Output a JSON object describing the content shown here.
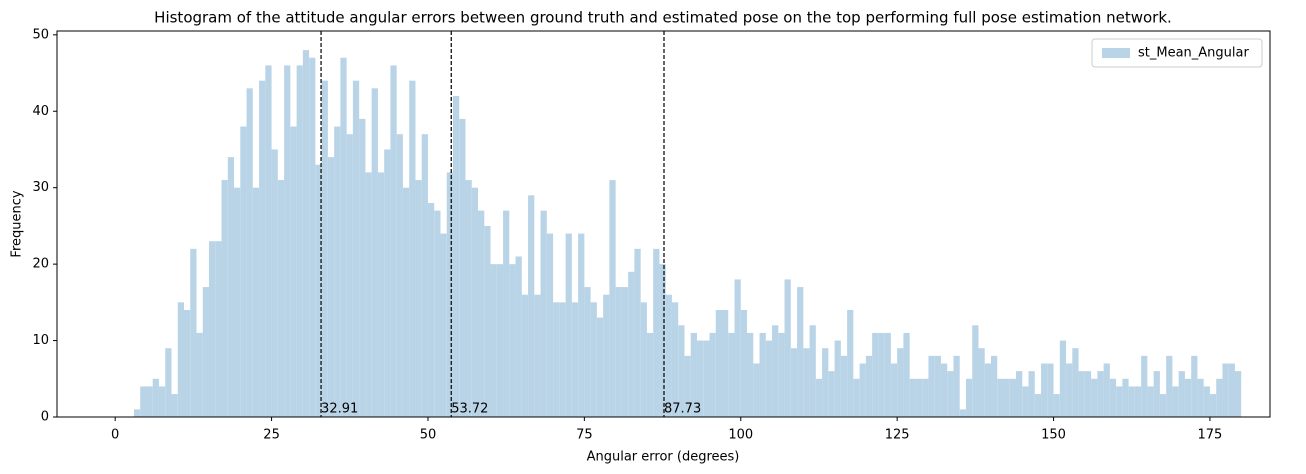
{
  "chart_data": {
    "type": "histogram",
    "title": "Histogram of the attitude angular errors between ground truth and estimated pose on the top performing full pose estimation network.",
    "xlabel": "Angular error (degrees)",
    "ylabel": "Frequency",
    "series": [
      {
        "name": "st_Mean_Angular",
        "color": "#bad4e7",
        "bins": [
          3,
          4,
          5,
          6,
          7,
          8,
          9,
          10,
          11,
          12,
          13,
          14,
          15,
          16,
          17,
          18,
          19,
          20,
          21,
          22,
          23,
          24,
          25,
          26,
          27,
          28,
          29,
          30,
          31,
          32,
          33,
          34,
          35,
          36,
          37,
          38,
          39,
          40,
          41,
          42,
          43,
          44,
          45,
          46,
          47,
          48,
          49,
          50,
          51,
          52,
          53,
          54,
          55,
          56,
          57,
          58,
          59,
          60,
          61,
          62,
          63,
          64,
          65,
          66,
          67,
          68,
          69,
          70,
          71,
          72,
          73,
          74,
          75,
          76,
          77,
          78,
          79,
          80,
          81,
          82,
          83,
          84,
          85,
          86,
          87,
          88,
          89,
          90,
          91,
          92,
          93,
          94,
          95,
          96,
          97,
          98,
          99,
          100,
          101,
          102,
          103,
          104,
          105,
          106,
          107,
          108,
          109,
          110,
          111,
          112,
          113,
          114,
          115,
          116,
          117,
          118,
          119,
          120,
          121,
          122,
          123,
          124,
          125,
          126,
          127,
          128,
          129,
          130,
          131,
          132,
          133,
          134,
          135,
          136,
          137,
          138,
          139,
          140,
          141,
          142,
          143,
          144,
          145,
          146,
          147,
          148,
          149,
          150,
          151,
          152,
          153,
          154,
          155,
          156,
          157,
          158,
          159,
          160,
          161,
          162,
          163,
          164,
          165,
          166,
          167,
          168,
          169,
          170,
          171,
          172,
          173,
          174,
          175,
          176,
          177,
          178,
          179,
          180
        ],
        "values": [
          1,
          4,
          4,
          5,
          4,
          9,
          3,
          15,
          14,
          22,
          11,
          17,
          23,
          23,
          31,
          34,
          30,
          38,
          43,
          30,
          44,
          46,
          35,
          31,
          46,
          38,
          46,
          48,
          47,
          33,
          44,
          34,
          38,
          47,
          37,
          44,
          39,
          32,
          43,
          32,
          35,
          46,
          37,
          30,
          44,
          31,
          37,
          28,
          27,
          24,
          32,
          42,
          39,
          31,
          30,
          27,
          25,
          20,
          20,
          27,
          20,
          21,
          16,
          29,
          16,
          27,
          24,
          15,
          15,
          24,
          15,
          24,
          17,
          15,
          13,
          16,
          31,
          17,
          17,
          19,
          22,
          15,
          11,
          22,
          20,
          16,
          15,
          12,
          8,
          11,
          10,
          10,
          11,
          14,
          14,
          11,
          18,
          14,
          11,
          7,
          11,
          10,
          12,
          11,
          18,
          9,
          17,
          9,
          12,
          5,
          9,
          6,
          10,
          8,
          14,
          5,
          7,
          8,
          11,
          11,
          11,
          7,
          9,
          11,
          5,
          5,
          5,
          8,
          8,
          7,
          6,
          8,
          1,
          5,
          12,
          9,
          7,
          8,
          5,
          5,
          5,
          6,
          4,
          6,
          3,
          7,
          7,
          3,
          10,
          7,
          9,
          6,
          6,
          5,
          6,
          7,
          5,
          4,
          5,
          4,
          4,
          8,
          4,
          6,
          3,
          8,
          4,
          6,
          5,
          8,
          5,
          4,
          3,
          5,
          7,
          7,
          6
        ]
      }
    ],
    "vlines": [
      32.91,
      53.72,
      87.73
    ],
    "xlim": [
      -9.3,
      184.6
    ],
    "ylim": [
      0,
      50.5
    ],
    "xticks": [
      0,
      25,
      50,
      75,
      100,
      125,
      150,
      175
    ],
    "yticks": [
      0,
      10,
      20,
      30,
      40,
      50
    ],
    "legend": "upper right"
  }
}
